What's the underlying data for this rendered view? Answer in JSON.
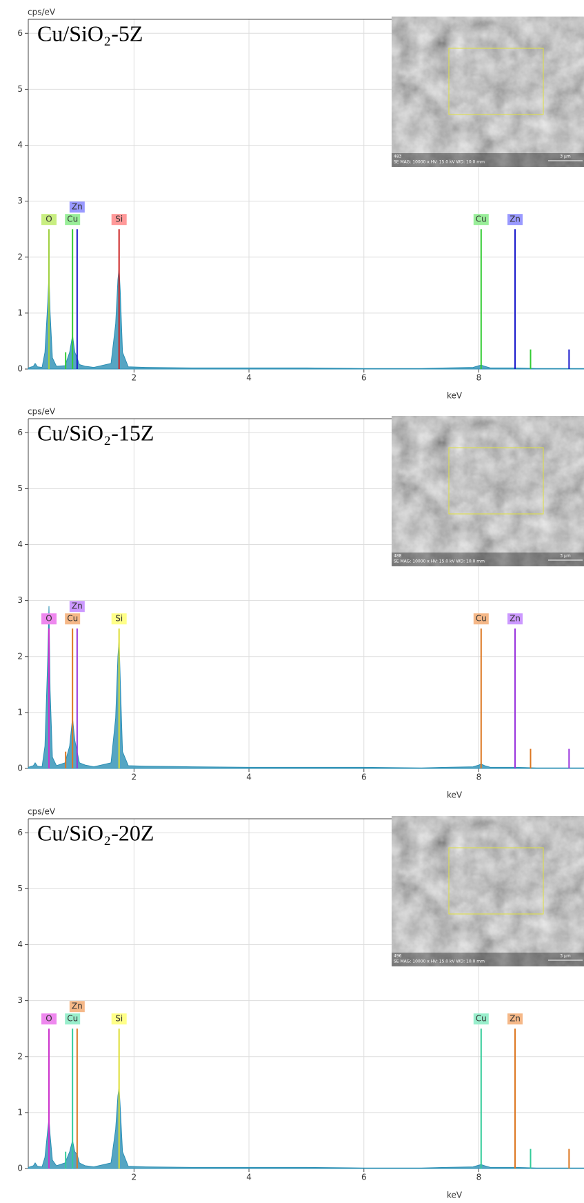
{
  "chart_data": [
    {
      "type": "line",
      "title": "Cu/SiO₂-5Z",
      "y_label": "cps/eV",
      "x_label": "keV",
      "xlim": [
        0.16,
        9.83
      ],
      "ylim": [
        0,
        6.25
      ],
      "xticks": [
        2,
        4,
        6,
        8
      ],
      "yticks": [
        0,
        1,
        2,
        3,
        4,
        5,
        6
      ],
      "grid": true,
      "x": [
        0.16,
        0.25,
        0.28,
        0.32,
        0.4,
        0.45,
        0.5,
        0.52,
        0.54,
        0.58,
        0.65,
        0.8,
        0.88,
        0.93,
        0.97,
        1.01,
        1.05,
        1.15,
        1.3,
        1.6,
        1.68,
        1.72,
        1.74,
        1.76,
        1.8,
        1.9,
        2.2,
        3,
        4,
        5,
        6,
        7,
        7.9,
        8.0,
        8.04,
        8.1,
        8.2,
        8.63,
        9,
        9.5,
        9.83
      ],
      "series": [
        {
          "color": "#2a8fb4",
          "values": [
            0.02,
            0.05,
            0.1,
            0.04,
            0.03,
            0.3,
            1.2,
            1.7,
            1.0,
            0.2,
            0.05,
            0.06,
            0.3,
            0.6,
            0.3,
            0.2,
            0.08,
            0.05,
            0.03,
            0.1,
            0.8,
            1.6,
            1.8,
            1.4,
            0.3,
            0.04,
            0.03,
            0.02,
            0.02,
            0.02,
            0.01,
            0.01,
            0.03,
            0.06,
            0.07,
            0.05,
            0.02,
            0.02,
            0.01,
            0.01,
            0.01
          ]
        }
      ],
      "elements": [
        {
          "name": "O",
          "color": "#a0d040",
          "label_color": "#c8ee80",
          "lines": [
            {
              "keV": 0.52,
              "height": 2.5,
              "label": "O"
            }
          ]
        },
        {
          "name": "Cu",
          "color": "#33cc33",
          "label_color": "#99ee99",
          "lines": [
            {
              "keV": 0.81,
              "height": 0.3
            },
            {
              "keV": 0.93,
              "height": 2.5,
              "label": "Cu"
            },
            {
              "keV": 8.04,
              "height": 2.5,
              "label": "Cu"
            },
            {
              "keV": 8.9,
              "height": 0.35
            }
          ]
        },
        {
          "name": "Zn",
          "color": "#1a1acc",
          "label_color": "#9999ff",
          "lines": [
            {
              "keV": 1.01,
              "height": 2.5,
              "label": "Zn"
            },
            {
              "keV": 8.63,
              "height": 2.5,
              "label": "Zn"
            },
            {
              "keV": 9.57,
              "height": 0.35
            }
          ]
        },
        {
          "name": "Si",
          "color": "#cc2222",
          "label_color": "#ff9999",
          "lines": [
            {
              "keV": 1.74,
              "height": 2.5,
              "label": "Si"
            }
          ]
        }
      ],
      "inset": {
        "sample": "483",
        "caption": "SE MAG: 10000 x HV: 15.0 kV WD: 10.0 mm",
        "scale": "3 µm"
      }
    },
    {
      "type": "line",
      "title": "Cu/SiO₂-15Z",
      "y_label": "cps/eV",
      "x_label": "keV",
      "xlim": [
        0.16,
        9.83
      ],
      "ylim": [
        0,
        6.25
      ],
      "xticks": [
        2,
        4,
        6,
        8
      ],
      "yticks": [
        0,
        1,
        2,
        3,
        4,
        5,
        6
      ],
      "grid": true,
      "x": [
        0.16,
        0.25,
        0.28,
        0.32,
        0.4,
        0.45,
        0.5,
        0.52,
        0.54,
        0.58,
        0.65,
        0.8,
        0.88,
        0.93,
        0.97,
        1.01,
        1.05,
        1.15,
        1.3,
        1.6,
        1.68,
        1.72,
        1.74,
        1.76,
        1.8,
        1.9,
        2.2,
        3,
        4,
        5,
        6,
        7,
        7.9,
        8.0,
        8.04,
        8.1,
        8.2,
        8.63,
        9,
        9.5,
        9.83
      ],
      "series": [
        {
          "color": "#2a8fb4",
          "values": [
            0.02,
            0.05,
            0.1,
            0.04,
            0.03,
            0.4,
            2.0,
            2.9,
            1.4,
            0.2,
            0.05,
            0.1,
            0.4,
            0.9,
            0.5,
            0.3,
            0.1,
            0.06,
            0.03,
            0.1,
            0.9,
            2.0,
            2.3,
            1.6,
            0.3,
            0.05,
            0.04,
            0.03,
            0.02,
            0.02,
            0.02,
            0.01,
            0.03,
            0.06,
            0.08,
            0.05,
            0.02,
            0.02,
            0.01,
            0.01,
            0.01
          ]
        }
      ],
      "elements": [
        {
          "name": "O",
          "color": "#cc33cc",
          "label_color": "#ee88ee",
          "lines": [
            {
              "keV": 0.52,
              "height": 2.5,
              "label": "O"
            }
          ]
        },
        {
          "name": "Cu",
          "color": "#dd7722",
          "label_color": "#f5b888",
          "lines": [
            {
              "keV": 0.81,
              "height": 0.3
            },
            {
              "keV": 0.93,
              "height": 2.5,
              "label": "Cu"
            },
            {
              "keV": 8.04,
              "height": 2.5,
              "label": "Cu"
            },
            {
              "keV": 8.9,
              "height": 0.35
            }
          ]
        },
        {
          "name": "Zn",
          "color": "#9933dd",
          "label_color": "#cc99ff",
          "lines": [
            {
              "keV": 1.01,
              "height": 2.5,
              "label": "Zn"
            },
            {
              "keV": 8.63,
              "height": 2.5,
              "label": "Zn"
            },
            {
              "keV": 9.57,
              "height": 0.35
            }
          ]
        },
        {
          "name": "Si",
          "color": "#dddd33",
          "label_color": "#ffff88",
          "lines": [
            {
              "keV": 1.74,
              "height": 2.5,
              "label": "Si"
            }
          ]
        }
      ],
      "inset": {
        "sample": "488",
        "caption": "SE MAG: 10000 x HV: 15.0 kV WD: 10.0 mm",
        "scale": "3 µm"
      }
    },
    {
      "type": "line",
      "title": "Cu/SiO₂-20Z",
      "y_label": "cps/eV",
      "x_label": "keV",
      "xlim": [
        0.16,
        9.83
      ],
      "ylim": [
        0,
        6.25
      ],
      "xticks": [
        2,
        4,
        6,
        8
      ],
      "yticks": [
        0,
        1,
        2,
        3,
        4,
        5,
        6
      ],
      "grid": true,
      "x": [
        0.16,
        0.25,
        0.28,
        0.32,
        0.4,
        0.45,
        0.5,
        0.52,
        0.54,
        0.58,
        0.65,
        0.8,
        0.88,
        0.93,
        0.97,
        1.01,
        1.05,
        1.15,
        1.3,
        1.6,
        1.68,
        1.72,
        1.74,
        1.76,
        1.8,
        1.9,
        2.2,
        3,
        4,
        5,
        6,
        7,
        7.9,
        8.0,
        8.04,
        8.1,
        8.2,
        8.63,
        9,
        9.5,
        9.83
      ],
      "series": [
        {
          "color": "#2a8fb4",
          "values": [
            0.02,
            0.05,
            0.1,
            0.04,
            0.03,
            0.2,
            0.7,
            0.9,
            0.6,
            0.15,
            0.05,
            0.1,
            0.3,
            0.5,
            0.3,
            0.25,
            0.1,
            0.05,
            0.03,
            0.1,
            0.7,
            1.3,
            1.45,
            1.1,
            0.3,
            0.04,
            0.03,
            0.02,
            0.02,
            0.02,
            0.01,
            0.01,
            0.03,
            0.06,
            0.07,
            0.05,
            0.02,
            0.02,
            0.01,
            0.01,
            0.01
          ]
        }
      ],
      "elements": [
        {
          "name": "O",
          "color": "#cc33cc",
          "label_color": "#ee88ee",
          "lines": [
            {
              "keV": 0.52,
              "height": 2.5,
              "label": "O"
            }
          ]
        },
        {
          "name": "Cu",
          "color": "#33cc99",
          "label_color": "#99eecc",
          "lines": [
            {
              "keV": 0.81,
              "height": 0.3
            },
            {
              "keV": 0.93,
              "height": 2.5,
              "label": "Cu"
            },
            {
              "keV": 8.04,
              "height": 2.5,
              "label": "Cu"
            },
            {
              "keV": 8.9,
              "height": 0.35
            }
          ]
        },
        {
          "name": "Zn",
          "color": "#dd7722",
          "label_color": "#f5b888",
          "lines": [
            {
              "keV": 1.01,
              "height": 2.5,
              "label": "Zn"
            },
            {
              "keV": 8.63,
              "height": 2.5,
              "label": "Zn"
            },
            {
              "keV": 9.57,
              "height": 0.35
            }
          ]
        },
        {
          "name": "Si",
          "color": "#dddd33",
          "label_color": "#ffff88",
          "lines": [
            {
              "keV": 1.74,
              "height": 2.5,
              "label": "Si"
            }
          ]
        }
      ],
      "inset": {
        "sample": "496",
        "caption": "SE MAG: 10000 x HV: 15.0 kV WD: 10.0 mm",
        "scale": "3 µm"
      }
    }
  ]
}
